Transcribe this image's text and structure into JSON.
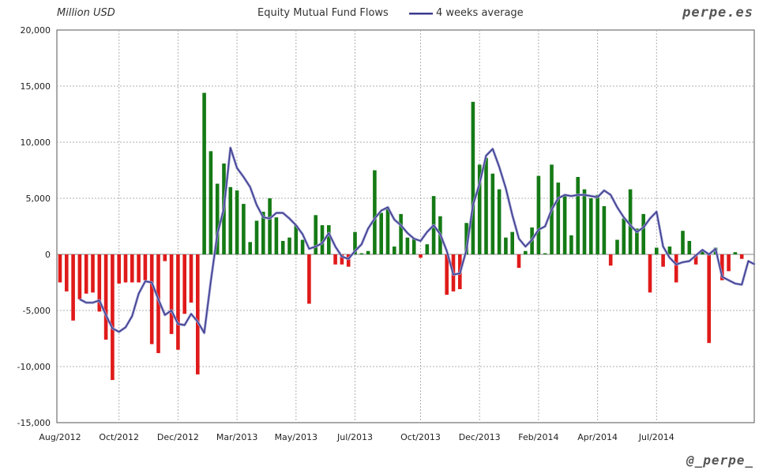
{
  "header": {
    "unit_label": "Million USD",
    "brand": "perpe.es",
    "handle": "@_perpe_"
  },
  "colors": {
    "positive": "#157a15",
    "negative": "#e01a1a",
    "average": "#3b3b8e",
    "grid": "#b0b0b0"
  },
  "chart_data": {
    "type": "bar",
    "title": "Equity Mutual Fund Flows",
    "legend": [
      {
        "name": "4 weeks average",
        "type": "line"
      }
    ],
    "ylabel": "Million USD",
    "ylim": [
      -15000,
      20000
    ],
    "yticks": [
      {
        "value": 20000,
        "label": "20,000"
      },
      {
        "value": 15000,
        "label": "15,000"
      },
      {
        "value": 10000,
        "label": "10,000"
      },
      {
        "value": 5000,
        "label": "5,000"
      },
      {
        "value": 0,
        "label": "0"
      },
      {
        "value": -5000,
        "label": "-5,000"
      },
      {
        "value": -10000,
        "label": "-10,000"
      },
      {
        "value": -15000,
        "label": "-15,000"
      }
    ],
    "xticks": [
      {
        "week": 0,
        "label": "Aug/2012"
      },
      {
        "week": 9,
        "label": "Oct/2012"
      },
      {
        "week": 18,
        "label": "Dec/2012"
      },
      {
        "week": 27,
        "label": "Mar/2013"
      },
      {
        "week": 36,
        "label": "May/2013"
      },
      {
        "week": 45,
        "label": "Jul/2013"
      },
      {
        "week": 55,
        "label": "Oct/2013"
      },
      {
        "week": 64,
        "label": "Dec/2013"
      },
      {
        "week": 73,
        "label": "Feb/2014"
      },
      {
        "week": 82,
        "label": "Apr/2014"
      },
      {
        "week": 91,
        "label": "Jul/2014"
      }
    ],
    "series": [
      {
        "name": "Equity Mutual Fund Flows",
        "type": "bar",
        "values": [
          -2500,
          -3300,
          -5900,
          -4000,
          -3500,
          -3400,
          -5100,
          -7600,
          -11200,
          -2600,
          -2500,
          -2500,
          -2500,
          -2300,
          -8000,
          -8800,
          -600,
          -7100,
          -8500,
          -5300,
          -4300,
          -10700,
          14400,
          9200,
          6300,
          8100,
          6000,
          5700,
          4500,
          1100,
          3000,
          3800,
          5000,
          3300,
          1200,
          1500,
          2600,
          1300,
          -4400,
          3500,
          2600,
          2600,
          -900,
          -900,
          -1100,
          2000,
          100,
          300,
          7500,
          3700,
          4200,
          700,
          3600,
          1500,
          1400,
          -300,
          900,
          5200,
          3400,
          -3600,
          -3300,
          -3100,
          2800,
          13600,
          8000,
          8600,
          7200,
          5800,
          1500,
          2000,
          -1200,
          300,
          2400,
          7000,
          100,
          8000,
          6400,
          5300,
          1700,
          6900,
          5800,
          5000,
          5300,
          4300,
          -1000,
          1300,
          3200,
          5800,
          2300,
          3600,
          -3400,
          600,
          -1100,
          700,
          -2500,
          2100,
          1200,
          -900,
          400,
          -7900,
          600,
          -2300,
          -1500,
          200,
          -400
        ]
      },
      {
        "name": "4 weeks average",
        "type": "line",
        "start_week": 3,
        "values": [
          -4000,
          -4300,
          -4300,
          -4100,
          -5400,
          -6600,
          -6900,
          -6500,
          -5500,
          -3500,
          -2400,
          -2500,
          -4000,
          -5400,
          -5000,
          -6200,
          -6300,
          -5300,
          -6000,
          -7000,
          -2400,
          1800,
          4100,
          9500,
          7700,
          6900,
          6000,
          4400,
          3300,
          3200,
          3700,
          3700,
          3200,
          2600,
          1800,
          500,
          700,
          1000,
          1900,
          700,
          -200,
          -400,
          300,
          900,
          2300,
          3200,
          3900,
          4200,
          3100,
          2600,
          1900,
          1400,
          1200,
          2000,
          2600,
          1800,
          300,
          -1800,
          -1700,
          400,
          4400,
          6300,
          8800,
          9400,
          7800,
          5900,
          3500,
          1400,
          700,
          1300,
          2200,
          2500,
          4000,
          5000,
          5300,
          5200,
          5300,
          5300,
          5200,
          5100,
          5700,
          5300,
          4200,
          3300,
          2600,
          2000,
          2400,
          3200,
          3800,
          700,
          -300,
          -900,
          -700,
          -600,
          -100,
          400,
          0,
          500,
          -2000,
          -2300,
          -2600,
          -2700,
          -600,
          -900
        ]
      }
    ],
    "grid": true,
    "legend_position": "top-center"
  }
}
